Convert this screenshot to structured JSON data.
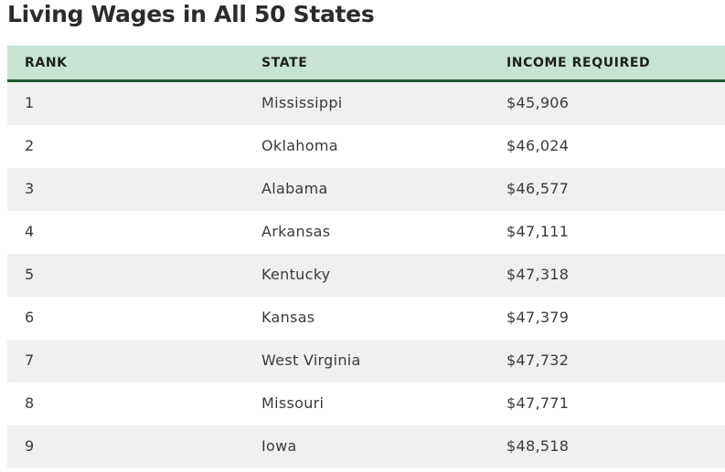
{
  "title": "Living Wages in All 50 States",
  "table": {
    "headers": {
      "rank": "RANK",
      "state": "STATE",
      "income": "INCOME REQUIRED"
    },
    "rows": [
      {
        "rank": "1",
        "state": "Mississippi",
        "income": "$45,906"
      },
      {
        "rank": "2",
        "state": "Oklahoma",
        "income": "$46,024"
      },
      {
        "rank": "3",
        "state": "Alabama",
        "income": "$46,577"
      },
      {
        "rank": "4",
        "state": "Arkansas",
        "income": "$47,111"
      },
      {
        "rank": "5",
        "state": "Kentucky",
        "income": "$47,318"
      },
      {
        "rank": "6",
        "state": "Kansas",
        "income": "$47,379"
      },
      {
        "rank": "7",
        "state": "West Virginia",
        "income": "$47,732"
      },
      {
        "rank": "8",
        "state": "Missouri",
        "income": "$47,771"
      },
      {
        "rank": "9",
        "state": "Iowa",
        "income": "$48,518"
      }
    ]
  },
  "colors": {
    "header_bg": "#c7e3d3",
    "header_border": "#1e5a31",
    "stripe": "#f0f0f0"
  }
}
